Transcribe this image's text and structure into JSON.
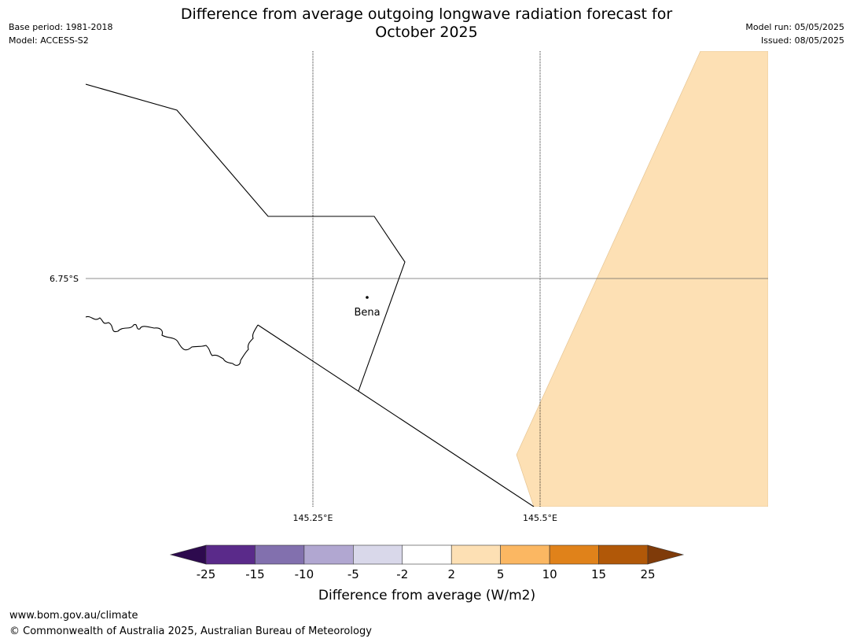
{
  "header": {
    "title_line1": "Difference from average outgoing longwave radiation forecast for",
    "title_line2": "October 2025",
    "base_period": "Base period: 1981-2018",
    "model": "Model: ACCESS-S2",
    "model_run": "Model run: 05/05/2025",
    "issued": "Issued: 08/05/2025"
  },
  "map": {
    "lat_label": "6.75°S",
    "lon_labels": [
      "145.25°E",
      "145.5°E"
    ],
    "place": "Bena",
    "shaded_category": "2 to 5",
    "shaded_color": "#fde0b4"
  },
  "colorbar": {
    "label": "Difference from average (W/m2)",
    "ticks": [
      "-25",
      "-15",
      "-10",
      "-5",
      "-2",
      "2",
      "5",
      "10",
      "15",
      "25"
    ],
    "colors": {
      "below_min": "#2d0a4e",
      "bins": [
        "#5a2a8a",
        "#8270ae",
        "#b1a7d1",
        "#d9d8ea",
        "#ffffff",
        "#fde0b4",
        "#fbb762",
        "#e0821a",
        "#b15808"
      ],
      "above_max": "#7f3b0a"
    }
  },
  "footer": {
    "website": "www.bom.gov.au/climate",
    "copyright": "© Commonwealth of Australia 2025, Australian Bureau of Meteorology"
  }
}
